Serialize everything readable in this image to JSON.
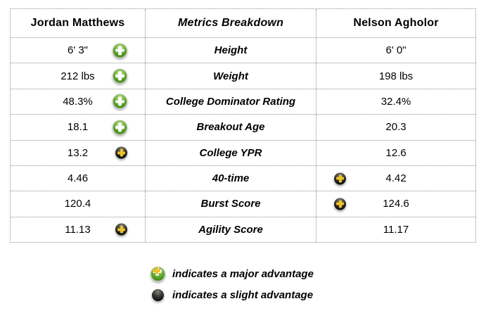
{
  "table": {
    "headers": {
      "left": "Jordan Matthews",
      "middle": "Metrics Breakdown",
      "right": "Nelson Agholor"
    },
    "rows": [
      {
        "left": "6' 3\"",
        "metric": "Height",
        "right": "6' 0\"",
        "left_icon": "major",
        "right_icon": ""
      },
      {
        "left": "212 lbs",
        "metric": "Weight",
        "right": "198 lbs",
        "left_icon": "major",
        "right_icon": ""
      },
      {
        "left": "48.3%",
        "metric": "College Dominator Rating",
        "right": "32.4%",
        "left_icon": "major",
        "right_icon": ""
      },
      {
        "left": "18.1",
        "metric": "Breakout Age",
        "right": "20.3",
        "left_icon": "major",
        "right_icon": ""
      },
      {
        "left": "13.2",
        "metric": "College YPR",
        "right": "12.6",
        "left_icon": "slight",
        "right_icon": ""
      },
      {
        "left": "4.46",
        "metric": "40-time",
        "right": "4.42",
        "left_icon": "",
        "right_icon": "slight"
      },
      {
        "left": "120.4",
        "metric": "Burst Score",
        "right": "124.6",
        "left_icon": "",
        "right_icon": "slight"
      },
      {
        "left": "11.13",
        "metric": "Agility Score",
        "right": "11.17",
        "left_icon": "slight",
        "right_icon": ""
      }
    ]
  },
  "legend": {
    "major_text": "indicates a major advantage",
    "slight_text": "indicates a slight advantage"
  },
  "colors": {
    "major_green": "#58a323",
    "slight_black": "#141412",
    "slight_gold": "#eec02d",
    "border_gray": "#8f8f8f",
    "text": "#000000"
  }
}
